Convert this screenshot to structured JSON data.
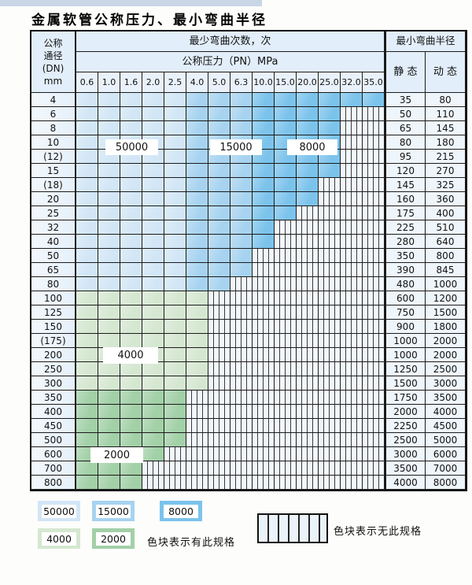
{
  "title": "金属软管公称压力、最小弯曲半径",
  "colors": {
    "blue_light": "#d2e6f6",
    "blue_mid": "#a7d3f0",
    "blue_dark": "#7cc3ec",
    "green_light": "#d5e7d1",
    "green_dark": "#a2d0a7"
  },
  "table": {
    "header": {
      "dn_line1": "公称",
      "dn_line2": "通径",
      "dn_line3": "(DN)",
      "dn_line4": "mm",
      "bend_cycles_label": "最少弯曲次数，次",
      "pressure_label": "公称压力（PN）MPa",
      "min_radius_label": "最小弯曲半径",
      "static_label": "静 态",
      "dynamic_label": "动 态",
      "pressures": [
        "0.6",
        "1.0",
        "1.6",
        "2.0",
        "2.5",
        "4.0",
        "5.0",
        "6.3",
        "10.0",
        "15.0",
        "20.0",
        "25.0",
        "32.0",
        "35.0"
      ]
    },
    "rows": [
      {
        "dn": "4",
        "span": 14,
        "palette": "blue",
        "static": "35",
        "dynamic": "80"
      },
      {
        "dn": "6",
        "span": 12,
        "palette": "blue",
        "static": "50",
        "dynamic": "110"
      },
      {
        "dn": "8",
        "span": 12,
        "palette": "blue",
        "static": "65",
        "dynamic": "145"
      },
      {
        "dn": "10",
        "span": 12,
        "palette": "blue",
        "static": "80",
        "dynamic": "180"
      },
      {
        "dn": "(12)",
        "span": 12,
        "palette": "blue",
        "static": "95",
        "dynamic": "215"
      },
      {
        "dn": "15",
        "span": 12,
        "palette": "blue",
        "static": "120",
        "dynamic": "270"
      },
      {
        "dn": "(18)",
        "span": 11,
        "palette": "blue",
        "static": "145",
        "dynamic": "325"
      },
      {
        "dn": "20",
        "span": 11,
        "palette": "blue",
        "static": "160",
        "dynamic": "360"
      },
      {
        "dn": "25",
        "span": 10,
        "palette": "blue",
        "static": "175",
        "dynamic": "400"
      },
      {
        "dn": "32",
        "span": 9,
        "palette": "blue",
        "static": "225",
        "dynamic": "510"
      },
      {
        "dn": "40",
        "span": 9,
        "palette": "blue",
        "static": "280",
        "dynamic": "640"
      },
      {
        "dn": "50",
        "span": 8,
        "palette": "blue",
        "static": "350",
        "dynamic": "800"
      },
      {
        "dn": "65",
        "span": 8,
        "palette": "blue",
        "static": "390",
        "dynamic": "845"
      },
      {
        "dn": "80",
        "span": 7,
        "palette": "blue",
        "static": "480",
        "dynamic": "1000"
      },
      {
        "dn": "100",
        "span": 6,
        "palette": "green_light",
        "static": "600",
        "dynamic": "1200"
      },
      {
        "dn": "125",
        "span": 6,
        "palette": "green_light",
        "static": "750",
        "dynamic": "1500"
      },
      {
        "dn": "150",
        "span": 6,
        "palette": "green_light",
        "static": "900",
        "dynamic": "1800"
      },
      {
        "dn": "(175)",
        "span": 6,
        "palette": "green_light",
        "static": "1000",
        "dynamic": "2000"
      },
      {
        "dn": "200",
        "span": 6,
        "palette": "green_light",
        "static": "1000",
        "dynamic": "2000"
      },
      {
        "dn": "250",
        "span": 6,
        "palette": "green_light",
        "static": "1250",
        "dynamic": "2500"
      },
      {
        "dn": "300",
        "span": 6,
        "palette": "green_light",
        "static": "1500",
        "dynamic": "3000"
      },
      {
        "dn": "350",
        "span": 5,
        "palette": "green_dark",
        "static": "1750",
        "dynamic": "3500"
      },
      {
        "dn": "400",
        "span": 5,
        "palette": "green_dark",
        "static": "2000",
        "dynamic": "4000"
      },
      {
        "dn": "450",
        "span": 5,
        "palette": "green_dark",
        "static": "2250",
        "dynamic": "4500"
      },
      {
        "dn": "500",
        "span": 5,
        "palette": "green_dark",
        "static": "2500",
        "dynamic": "5000"
      },
      {
        "dn": "600",
        "span": 4,
        "palette": "green_dark",
        "static": "3000",
        "dynamic": "6000"
      },
      {
        "dn": "700",
        "span": 3,
        "palette": "green_dark",
        "static": "3500",
        "dynamic": "7000"
      },
      {
        "dn": "800",
        "span": 3,
        "palette": "green_dark",
        "static": "4000",
        "dynamic": "8000"
      }
    ]
  },
  "legend": {
    "items": [
      {
        "value": "50000",
        "color_key": "blue_light"
      },
      {
        "value": "15000",
        "color_key": "blue_mid"
      },
      {
        "value": "8000",
        "color_key": "blue_dark"
      },
      {
        "value": "4000",
        "color_key": "green_light"
      },
      {
        "value": "2000",
        "color_key": "green_dark"
      }
    ],
    "has_spec_text": "色块表示有此规格",
    "no_spec_text": "色块表示无此规格"
  }
}
